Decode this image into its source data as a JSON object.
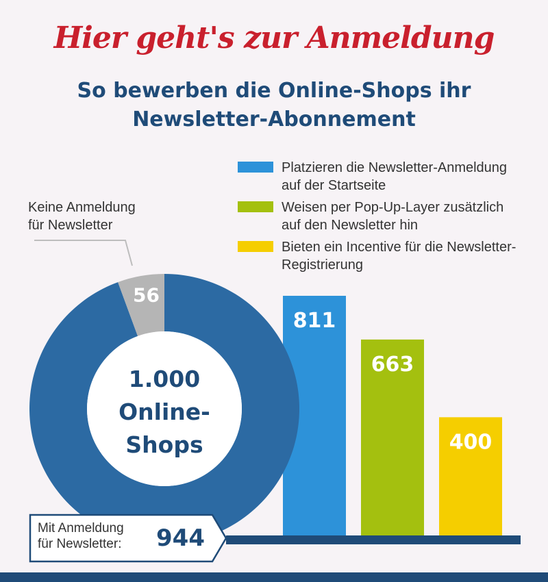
{
  "header": {
    "title": "Hier geht's zur Anmeldung",
    "subtitle": "So bewerben die Online-Shops ihr\nNewsletter-Abonnement"
  },
  "colors": {
    "donut_main": "#2c6aa3",
    "donut_none": "#b5b5b5",
    "bar_blue": "#2d92d9",
    "bar_green": "#a4c00f",
    "bar_yellow": "#f5ce00",
    "title_red": "#c9202d",
    "navy": "#1f4b78"
  },
  "donut": {
    "center_line1": "1.000",
    "center_line2": "Online-",
    "center_line3": "Shops",
    "none_callout": "Keine Anmeldung\nfür Newsletter",
    "with_callout": "Mit Anmeldung\nfür Newsletter:"
  },
  "chart_data": [
    {
      "type": "pie",
      "total": 1000,
      "slices": [
        {
          "label": "Mit Anmeldung für Newsletter",
          "value": 944
        },
        {
          "label": "Keine Anmeldung für Newsletter",
          "value": 56
        }
      ]
    },
    {
      "type": "bar",
      "categories": [
        "Platzieren die Newsletter-Anmeldung auf der Startseite",
        "Weisen per Pop-Up-Layer zusätzlich auf den Newsletter hin",
        "Bieten ein Incentive für die Newsletter-Registrierung"
      ],
      "values": [
        811,
        663,
        400
      ]
    }
  ],
  "legend": [
    {
      "label": "Platzieren die Newsletter-Anmeldung\nauf der Startseite"
    },
    {
      "label": "Weisen per Pop-Up-Layer zusätzlich\nauf den Newsletter hin"
    },
    {
      "label": "Bieten ein Incentive für die Newsletter-\nRegistrierung"
    }
  ]
}
